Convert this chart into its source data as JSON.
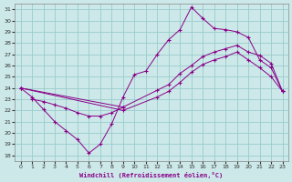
{
  "xlabel": "Windchill (Refroidissement éolien,°C)",
  "bg_color": "#cce8e8",
  "grid_color": "#99cccc",
  "line_color": "#880088",
  "xlim": [
    -0.5,
    23.5
  ],
  "ylim": [
    17.5,
    31.5
  ],
  "xticks": [
    0,
    1,
    2,
    3,
    4,
    5,
    6,
    7,
    8,
    9,
    10,
    11,
    12,
    13,
    14,
    15,
    16,
    17,
    18,
    19,
    20,
    21,
    22,
    23
  ],
  "yticks": [
    18,
    19,
    20,
    21,
    22,
    23,
    24,
    25,
    26,
    27,
    28,
    29,
    30,
    31
  ],
  "line1_x": [
    0,
    1,
    2,
    3,
    4,
    5,
    6,
    7,
    8,
    9,
    10,
    11,
    12,
    13,
    14,
    15,
    16,
    17,
    18,
    19,
    20,
    21,
    22,
    23
  ],
  "line1_y": [
    24.0,
    23.2,
    22.1,
    21.0,
    20.2,
    19.4,
    18.2,
    19.0,
    20.8,
    23.2,
    25.2,
    25.5,
    27.0,
    28.3,
    29.2,
    31.2,
    30.2,
    29.3,
    29.2,
    29.0,
    28.5,
    26.5,
    25.8,
    23.7
  ],
  "line2_x": [
    0,
    9,
    12,
    13,
    14,
    15,
    16,
    17,
    18,
    19,
    20,
    21,
    22,
    23
  ],
  "line2_y": [
    24.0,
    22.3,
    23.8,
    24.3,
    25.3,
    26.0,
    26.8,
    27.2,
    27.5,
    27.8,
    27.2,
    26.9,
    26.2,
    23.7
  ],
  "line3_x": [
    0,
    9,
    12,
    13,
    14,
    15,
    16,
    17,
    18,
    19,
    20,
    21,
    22,
    23
  ],
  "line3_y": [
    24.0,
    22.0,
    23.2,
    23.7,
    24.5,
    25.4,
    26.1,
    26.5,
    26.8,
    27.2,
    26.5,
    25.8,
    25.0,
    23.7
  ],
  "line4_x": [
    1,
    2,
    3,
    4,
    5,
    6,
    7,
    8,
    9
  ],
  "line4_y": [
    23.0,
    22.8,
    22.5,
    22.2,
    21.8,
    21.5,
    21.5,
    21.8,
    22.3
  ]
}
